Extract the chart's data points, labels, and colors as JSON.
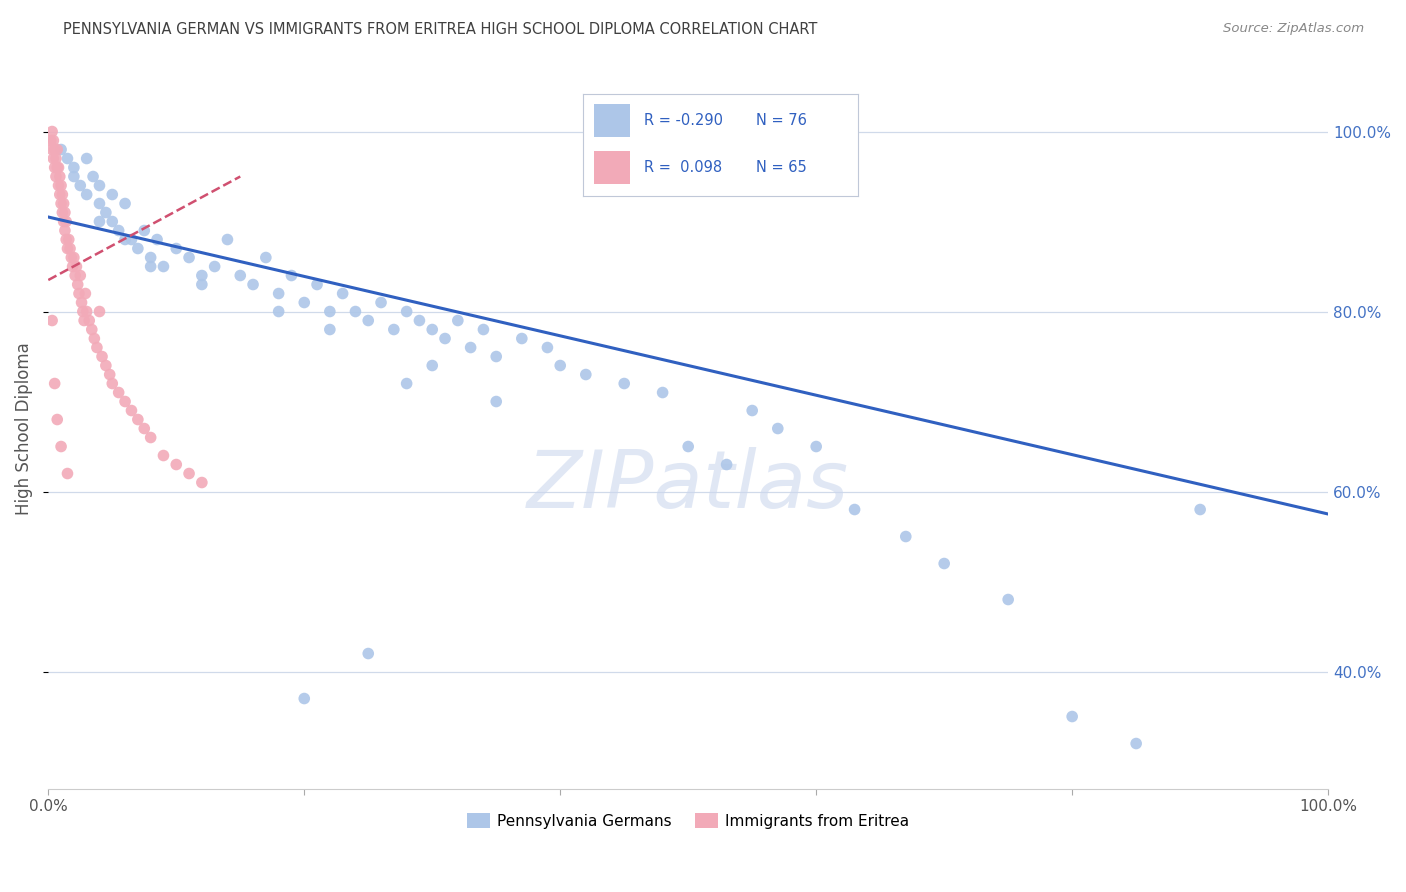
{
  "title": "PENNSYLVANIA GERMAN VS IMMIGRANTS FROM ERITREA HIGH SCHOOL DIPLOMA CORRELATION CHART",
  "source": "Source: ZipAtlas.com",
  "ylabel": "High School Diploma",
  "legend_label_blue": "Pennsylvania Germans",
  "legend_label_pink": "Immigrants from Eritrea",
  "r_blue": "-0.290",
  "n_blue": "76",
  "r_pink": "0.098",
  "n_pink": "65",
  "blue_color": "#adc6e8",
  "pink_color": "#f2aab8",
  "blue_line_color": "#3060c0",
  "pink_line_color": "#d05070",
  "bg_color": "#ffffff",
  "grid_color": "#d0daea",
  "right_axis_color": "#4472c4",
  "title_color": "#404040",
  "source_color": "#888888",
  "watermark_color": "#ccd8ee",
  "xlim": [
    0.0,
    1.0
  ],
  "ylim": [
    0.27,
    1.07
  ],
  "right_yticks": [
    0.4,
    0.6,
    0.8,
    1.0
  ],
  "right_yticklabels": [
    "40.0%",
    "60.0%",
    "80.0%",
    "100.0%"
  ],
  "blue_line_x": [
    0.0,
    1.0
  ],
  "blue_line_y": [
    0.905,
    0.575
  ],
  "pink_line_x": [
    0.0,
    0.15
  ],
  "pink_line_y": [
    0.835,
    0.95
  ],
  "blue_x": [
    0.01,
    0.015,
    0.02,
    0.02,
    0.025,
    0.03,
    0.03,
    0.035,
    0.04,
    0.04,
    0.045,
    0.05,
    0.05,
    0.055,
    0.06,
    0.065,
    0.07,
    0.075,
    0.08,
    0.085,
    0.09,
    0.1,
    0.11,
    0.12,
    0.13,
    0.14,
    0.15,
    0.16,
    0.17,
    0.18,
    0.19,
    0.2,
    0.21,
    0.22,
    0.23,
    0.24,
    0.25,
    0.26,
    0.27,
    0.28,
    0.29,
    0.3,
    0.31,
    0.32,
    0.33,
    0.34,
    0.35,
    0.37,
    0.39,
    0.4,
    0.42,
    0.45,
    0.48,
    0.5,
    0.53,
    0.55,
    0.57,
    0.6,
    0.63,
    0.67,
    0.7,
    0.75,
    0.8,
    0.85,
    0.9,
    0.3,
    0.28,
    0.35,
    0.22,
    0.18,
    0.12,
    0.08,
    0.06,
    0.04,
    0.25,
    0.2
  ],
  "blue_y": [
    0.98,
    0.97,
    0.95,
    0.96,
    0.94,
    0.93,
    0.97,
    0.95,
    0.92,
    0.94,
    0.91,
    0.9,
    0.93,
    0.89,
    0.92,
    0.88,
    0.87,
    0.89,
    0.86,
    0.88,
    0.85,
    0.87,
    0.86,
    0.84,
    0.85,
    0.88,
    0.84,
    0.83,
    0.86,
    0.82,
    0.84,
    0.81,
    0.83,
    0.8,
    0.82,
    0.8,
    0.79,
    0.81,
    0.78,
    0.8,
    0.79,
    0.78,
    0.77,
    0.79,
    0.76,
    0.78,
    0.75,
    0.77,
    0.76,
    0.74,
    0.73,
    0.72,
    0.71,
    0.65,
    0.63,
    0.69,
    0.67,
    0.65,
    0.58,
    0.55,
    0.52,
    0.48,
    0.35,
    0.32,
    0.58,
    0.74,
    0.72,
    0.7,
    0.78,
    0.8,
    0.83,
    0.85,
    0.88,
    0.9,
    0.42,
    0.37
  ],
  "pink_x": [
    0.002,
    0.003,
    0.003,
    0.004,
    0.004,
    0.005,
    0.005,
    0.006,
    0.006,
    0.007,
    0.007,
    0.008,
    0.008,
    0.009,
    0.009,
    0.01,
    0.01,
    0.011,
    0.011,
    0.012,
    0.012,
    0.013,
    0.013,
    0.014,
    0.014,
    0.015,
    0.016,
    0.017,
    0.018,
    0.019,
    0.02,
    0.021,
    0.022,
    0.023,
    0.024,
    0.025,
    0.026,
    0.027,
    0.028,
    0.029,
    0.03,
    0.032,
    0.034,
    0.036,
    0.038,
    0.04,
    0.042,
    0.045,
    0.048,
    0.05,
    0.055,
    0.06,
    0.065,
    0.07,
    0.075,
    0.08,
    0.09,
    0.1,
    0.11,
    0.12,
    0.003,
    0.005,
    0.007,
    0.01,
    0.015
  ],
  "pink_y": [
    0.99,
    0.98,
    1.0,
    0.97,
    0.99,
    0.98,
    0.96,
    0.97,
    0.95,
    0.96,
    0.98,
    0.94,
    0.96,
    0.93,
    0.95,
    0.92,
    0.94,
    0.91,
    0.93,
    0.9,
    0.92,
    0.89,
    0.91,
    0.88,
    0.9,
    0.87,
    0.88,
    0.87,
    0.86,
    0.85,
    0.86,
    0.84,
    0.85,
    0.83,
    0.82,
    0.84,
    0.81,
    0.8,
    0.79,
    0.82,
    0.8,
    0.79,
    0.78,
    0.77,
    0.76,
    0.8,
    0.75,
    0.74,
    0.73,
    0.72,
    0.71,
    0.7,
    0.69,
    0.68,
    0.67,
    0.66,
    0.64,
    0.63,
    0.62,
    0.61,
    0.79,
    0.72,
    0.68,
    0.65,
    0.62
  ]
}
